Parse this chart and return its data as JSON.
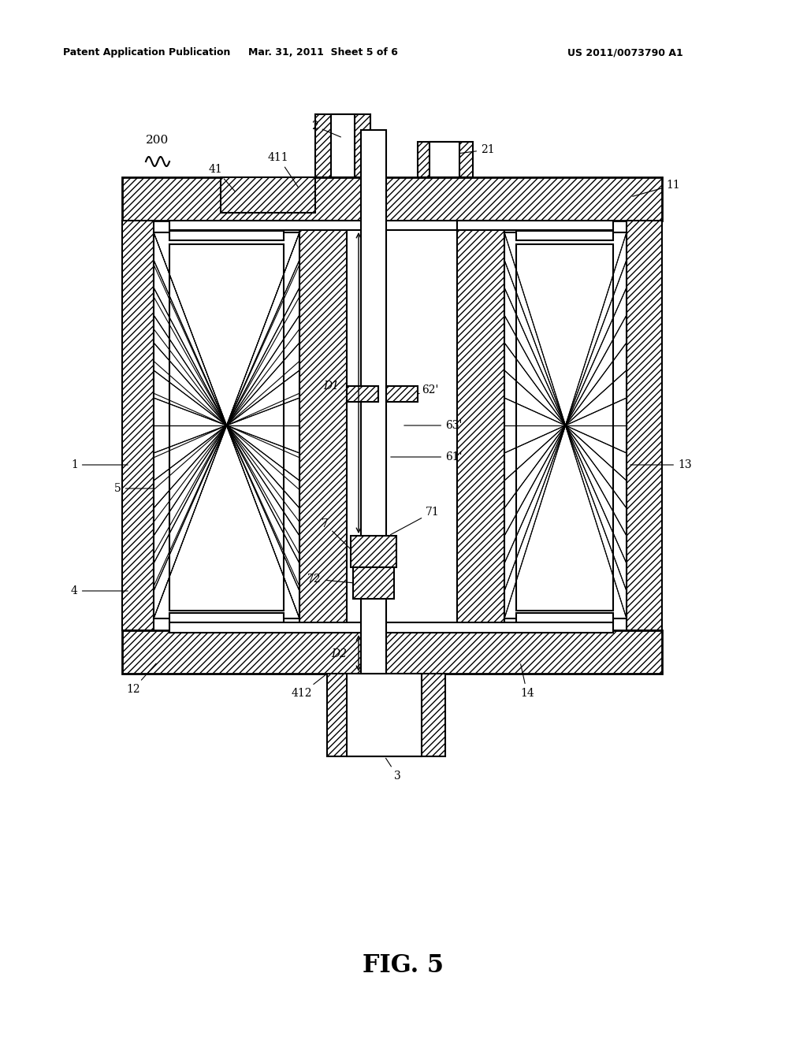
{
  "bg_color": "#ffffff",
  "line_color": "#000000",
  "header_left": "Patent Application Publication",
  "header_mid": "Mar. 31, 2011  Sheet 5 of 6",
  "header_right": "US 2011/0073790 A1",
  "fig_label": "FIG. 5"
}
